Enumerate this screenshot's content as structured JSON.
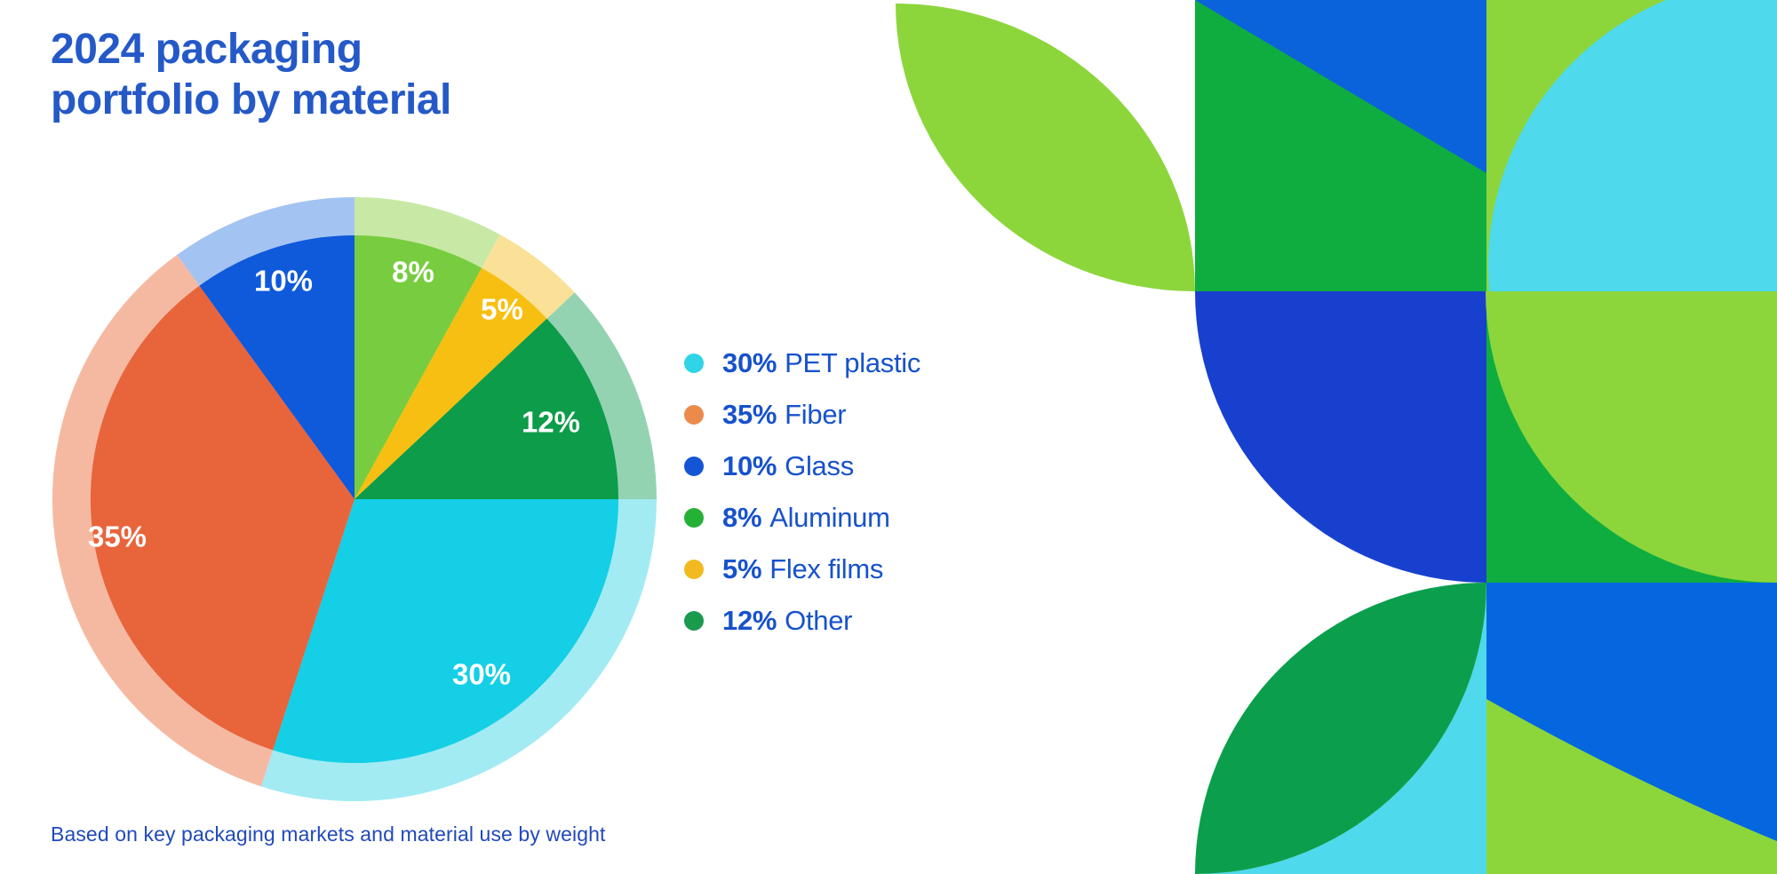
{
  "header": {
    "title_lines": [
      "2024 packaging",
      "portfolio by material"
    ],
    "title_color": "#2459C7"
  },
  "footer": {
    "note": "Based on key packaging markets and material use by weight",
    "color": "#2149BB"
  },
  "legend": {
    "text_color": "#1752CB"
  },
  "chart_data": {
    "type": "pie",
    "title": "2024 packaging portfolio by material",
    "annotation": "Based on key packaging markets and material use by weight",
    "legend_position": "right",
    "total": 100,
    "items": [
      {
        "label": "PET plastic",
        "value": 30,
        "pct_label": "30%",
        "slice_color": "#14CFE6",
        "ring_color": "#A3EBF3",
        "dot_color": "#2FD4E6",
        "label_r": 0.82
      },
      {
        "label": "Fiber",
        "value": 35,
        "pct_label": "35%",
        "slice_color": "#E8643B",
        "ring_color": "#F5B9A2",
        "dot_color": "#EC8A4B",
        "label_r": 0.91
      },
      {
        "label": "Glass",
        "value": 10,
        "pct_label": "10%",
        "slice_color": "#0F59DB",
        "ring_color": "#A3C3F2",
        "dot_color": "#1455D6",
        "label_r": 0.87
      },
      {
        "label": "Aluminum",
        "value": 8,
        "pct_label": "8%",
        "slice_color": "#77CD3F",
        "ring_color": "#C8E9A5",
        "dot_color": "#25B136",
        "label_r": 0.89
      },
      {
        "label": "Flex films",
        "value": 5,
        "pct_label": "5%",
        "slice_color": "#F7BF11",
        "ring_color": "#FAE197",
        "dot_color": "#F2BA20",
        "label_r": 0.91
      },
      {
        "label": "Other",
        "value": 12,
        "pct_label": "12%",
        "slice_color": "#0C9C4A",
        "ring_color": "#93D3B2",
        "dot_color": "#1A9A4D",
        "label_r": 0.8
      }
    ],
    "pie_draw_order": [
      3,
      4,
      5,
      0,
      1,
      2
    ],
    "start_angle_deg": 0,
    "clockwise": true,
    "slice_label_text_color": "#FFFFFF"
  },
  "decor": {
    "colors": {
      "lime": "#8CD63C",
      "green": "#0FAD3F",
      "triangle_blue": "#0B63DB",
      "indigo": "#1840CE",
      "cyan": "#4ED9ED",
      "leaf_green": "#0B9F4D",
      "azure": "#0467E0"
    }
  }
}
